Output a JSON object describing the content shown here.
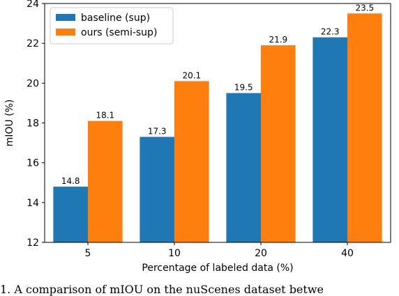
{
  "chart_data": {
    "type": "bar",
    "categories": [
      "5",
      "10",
      "20",
      "40"
    ],
    "series": [
      {
        "name": "baseline (sup)",
        "color": "#1f77b4",
        "values": [
          14.8,
          17.3,
          19.5,
          22.3
        ]
      },
      {
        "name": "ours (semi-sup)",
        "color": "#ff7f0e",
        "values": [
          18.1,
          20.1,
          21.9,
          23.5
        ]
      }
    ],
    "xlabel": "Percentage of labeled data (%)",
    "ylabel": "mIOU (%)",
    "ylim": [
      12,
      24
    ],
    "yticks": [
      12,
      14,
      16,
      18,
      20,
      22,
      24
    ],
    "legend": "top-left",
    "grid": false
  },
  "caption": "1.   A comparison of mIOU on the nuScenes dataset betwe"
}
